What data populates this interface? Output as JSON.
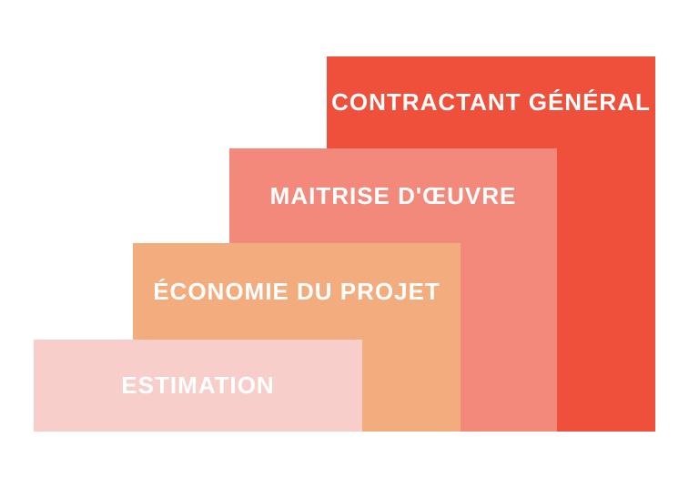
{
  "diagram": {
    "title": "service-scope-staircase",
    "background_color": "#ffffff",
    "label_text_color": "#ffffff",
    "steps": [
      {
        "level": 1,
        "label": "ESTIMATION",
        "color": "#f8cecb"
      },
      {
        "level": 2,
        "label": "ÉCONOMIE DU PROJET",
        "color": "#f3ac7d"
      },
      {
        "level": 3,
        "label": "MAITRISE D'ŒUVRE",
        "color": "#f2897a"
      },
      {
        "level": 4,
        "label": "CONTRACTANT GÉNÉRAL",
        "color": "#ef503c"
      }
    ]
  }
}
